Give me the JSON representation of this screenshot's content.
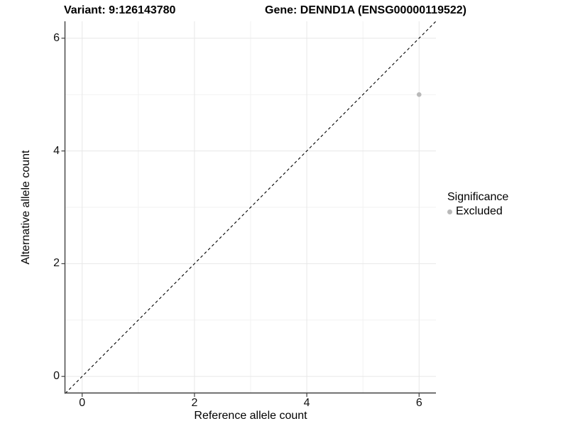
{
  "titles": {
    "variant": "Variant: 9:126143780",
    "gene": "Gene: DENND1A (ENSG00000119522)"
  },
  "chart_data": {
    "type": "scatter",
    "title": "Variant: 9:126143780  |  Gene: DENND1A (ENSG00000119522)",
    "xlabel": "Reference allele count",
    "ylabel": "Alternative allele count",
    "xlim": [
      -0.3,
      6.3
    ],
    "ylim": [
      -0.3,
      6.3
    ],
    "xticks": [
      0,
      2,
      4,
      6
    ],
    "yticks": [
      0,
      2,
      4,
      6
    ],
    "grid_minor": [
      1,
      3,
      5
    ],
    "grid": true,
    "points": [
      {
        "x": 6,
        "y": 5,
        "series": "Excluded"
      }
    ],
    "reference_line": {
      "kind": "identity",
      "style": "dashed",
      "from": [
        -0.3,
        -0.3
      ],
      "to": [
        6.3,
        6.3
      ]
    },
    "legend": {
      "title": "Significance",
      "position": "right",
      "items": [
        {
          "label": "Excluded",
          "color": "#b9b9b9"
        }
      ]
    }
  },
  "colors": {
    "point": "#b9b9b9",
    "grid_major": "#e7e7e7",
    "grid_minor": "#f2f2f2",
    "axis": "#404040",
    "dashed_line": "#000000",
    "text": "#000000"
  }
}
